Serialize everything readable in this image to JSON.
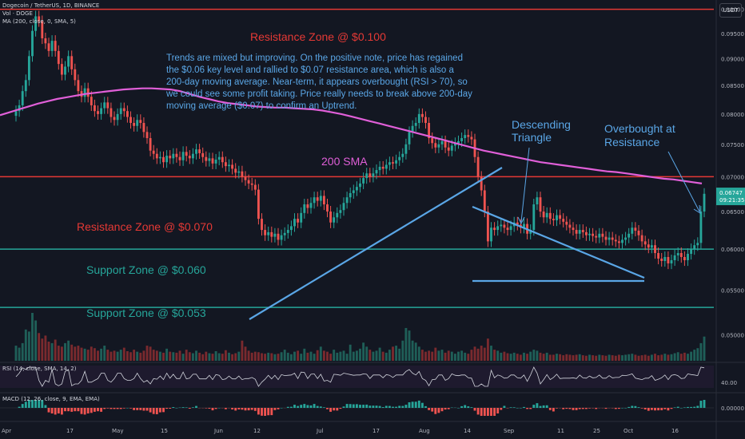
{
  "header": {
    "symbol_line": "Dogecoin / TetherUS, 1D, BINANCE",
    "volume_line": "Vol · DOGE",
    "ma_line": "MA (200, close, 0, SMA, 5)",
    "currency_button": "USDT"
  },
  "rsi_label": "RSI (14, close, SMA, 14, 2)",
  "macd_label": "MACD (12, 26, close, 9, EMA, EMA)",
  "annotations": {
    "resistance_100": "Resistance Zone @ $0.100",
    "resistance_070": "Resistance Zone @ $0.070",
    "support_060": "Support Zone @ $0.060",
    "support_053": "Support Zone @ $0.053",
    "sma_label": "200 SMA",
    "descending_line1": "Descending",
    "descending_line2": "Triangle",
    "overbought_line1": "Overbought at",
    "overbought_line2": "Resistance",
    "commentary": [
      "Trends are mixed but improving. On the positive note, price has regained",
      "the $0.06 key level and rallied to $0.07 resistance area, which is also a",
      "200-day moving average. Near-term, it appears overbought (RSI > 70), so",
      "we could see some profit taking. Price really needs to break above 200-day",
      "moving average ($0.07) to confirm an Uptrend."
    ]
  },
  "last_price": {
    "value": "0.06747",
    "countdown": "09:21:35"
  },
  "colors": {
    "background": "#131722",
    "up": "#26a69a",
    "down": "#ef5350",
    "sma": "#e05fd8",
    "resistance": "#e53935",
    "support": "#26a69a",
    "trendline": "#5aa6e6",
    "annotation_text": "#5aa6e6",
    "axis_text": "#b2b5be"
  },
  "chart_data": {
    "type": "candlestick",
    "y_axis": {
      "ticks": [
        "0.10000",
        "0.09500",
        "0.09000",
        "0.08500",
        "0.08000",
        "0.07500",
        "0.07000",
        "0.06500",
        "0.06000",
        "0.05500",
        "0.05000"
      ],
      "ylim": [
        0.0473,
        0.1013
      ],
      "scale": "log"
    },
    "x_axis": {
      "ticks": [
        "Apr",
        "17",
        "May",
        "15",
        "Jun",
        "12",
        "Jul",
        "17",
        "Aug",
        "14",
        "Sep",
        "11",
        "25",
        "Oct",
        "16"
      ]
    },
    "levels": [
      {
        "name": "Resistance Zone @ $0.100",
        "value": 0.1
      },
      {
        "name": "Resistance Zone @ $0.070",
        "value": 0.07
      },
      {
        "name": "Support Zone @ $0.060",
        "value": 0.06
      },
      {
        "name": "Support Zone @ $0.053",
        "value": 0.053
      }
    ],
    "series": {
      "close": [
        0.0805,
        0.0815,
        0.084,
        0.086,
        0.0905,
        0.0955,
        0.0985,
        0.0975,
        0.094,
        0.093,
        0.0915,
        0.0935,
        0.0915,
        0.089,
        0.087,
        0.0885,
        0.0905,
        0.088,
        0.086,
        0.084,
        0.083,
        0.0845,
        0.083,
        0.0815,
        0.0805,
        0.08,
        0.081,
        0.082,
        0.081,
        0.0795,
        0.079,
        0.08,
        0.081,
        0.0805,
        0.0795,
        0.0785,
        0.078,
        0.079,
        0.0785,
        0.077,
        0.076,
        0.074,
        0.0735,
        0.0728,
        0.073,
        0.0722,
        0.0732,
        0.0728,
        0.0735,
        0.073,
        0.0725,
        0.0738,
        0.0732,
        0.0728,
        0.0735,
        0.0742,
        0.0736,
        0.073,
        0.0724,
        0.0728,
        0.072,
        0.0726,
        0.073,
        0.0722,
        0.0716,
        0.0718,
        0.0712,
        0.0706,
        0.0708,
        0.07,
        0.0695,
        0.069,
        0.0688,
        0.0681,
        0.064,
        0.0625,
        0.0618,
        0.0622,
        0.0616,
        0.062,
        0.0612,
        0.0618,
        0.0621,
        0.0625,
        0.063,
        0.064,
        0.0635,
        0.0648,
        0.066,
        0.0655,
        0.0662,
        0.067,
        0.0665,
        0.0672,
        0.066,
        0.065,
        0.0635,
        0.0642,
        0.0648,
        0.0652,
        0.0662,
        0.067,
        0.0676,
        0.068,
        0.0685,
        0.069,
        0.0698,
        0.0705,
        0.07,
        0.0705,
        0.071,
        0.0715,
        0.0712,
        0.0718,
        0.0722,
        0.072,
        0.0725,
        0.073,
        0.0735,
        0.075,
        0.077,
        0.078,
        0.0785,
        0.08,
        0.0795,
        0.0785,
        0.076,
        0.0752,
        0.0745,
        0.075,
        0.0755,
        0.0745,
        0.074,
        0.0748,
        0.0752,
        0.0755,
        0.076,
        0.0765,
        0.0762,
        0.0758,
        0.073,
        0.07,
        0.068,
        0.065,
        0.061,
        0.0628,
        0.0625,
        0.063,
        0.0632,
        0.0628,
        0.0625,
        0.063,
        0.0635,
        0.0632,
        0.0628,
        0.0633,
        0.062,
        0.0625,
        0.066,
        0.067,
        0.065,
        0.0642,
        0.0648,
        0.064,
        0.0638,
        0.0645,
        0.064,
        0.0636,
        0.0632,
        0.0628,
        0.0625,
        0.062,
        0.0625,
        0.0622,
        0.0618,
        0.062,
        0.0617,
        0.0615,
        0.062,
        0.0616,
        0.0612,
        0.0615,
        0.0612,
        0.061,
        0.0608,
        0.0612,
        0.0615,
        0.062,
        0.0628,
        0.0624,
        0.0618,
        0.061,
        0.0606,
        0.0602,
        0.0605,
        0.0595,
        0.0588,
        0.0585,
        0.059,
        0.0582,
        0.0586,
        0.0592,
        0.0595,
        0.059,
        0.0586,
        0.0594,
        0.06,
        0.0605,
        0.0608,
        0.065,
        0.0675
      ],
      "sma200": [
        0.0798,
        0.0803,
        0.0808,
        0.0813,
        0.0818,
        0.0822,
        0.0826,
        0.0829,
        0.0832,
        0.0835,
        0.0837,
        0.0839,
        0.0841,
        0.0843,
        0.0844,
        0.0845,
        0.0845,
        0.0844,
        0.0843,
        0.084,
        0.0835,
        0.083,
        0.0826,
        0.0822,
        0.0819,
        0.0817,
        0.0815,
        0.0813,
        0.0812,
        0.0811,
        0.0811,
        0.081,
        0.0809,
        0.0808,
        0.0806,
        0.0803,
        0.08,
        0.0796,
        0.0792,
        0.0788,
        0.0784,
        0.078,
        0.0776,
        0.0772,
        0.0768,
        0.0764,
        0.076,
        0.0756,
        0.0752,
        0.0748,
        0.0744,
        0.074,
        0.0737,
        0.0734,
        0.0731,
        0.0728,
        0.0725,
        0.0722,
        0.072,
        0.0718,
        0.0716,
        0.0714,
        0.0712,
        0.071,
        0.0708,
        0.0707,
        0.0705,
        0.0703,
        0.0701,
        0.0699,
        0.0697,
        0.0696,
        0.0694,
        0.0692,
        0.069
      ],
      "volume": [
        30,
        26,
        35,
        62,
        58,
        95,
        80,
        55,
        44,
        50,
        38,
        35,
        42,
        30,
        28,
        35,
        40,
        32,
        28,
        30,
        26,
        24,
        22,
        28,
        25,
        20,
        24,
        30,
        22,
        18,
        20,
        18,
        22,
        26,
        19,
        17,
        22,
        18,
        16,
        20,
        30,
        28,
        22,
        20,
        18,
        16,
        24,
        18,
        17,
        16,
        20,
        14,
        22,
        17,
        15,
        20,
        16,
        13,
        18,
        15,
        14,
        19,
        15,
        14,
        21,
        16,
        13,
        15,
        18,
        40,
        28,
        20,
        16,
        18,
        17,
        15,
        14,
        16,
        15,
        13,
        14,
        17,
        22,
        16,
        13,
        18,
        20,
        14,
        24,
        16,
        18,
        14,
        21,
        28,
        20,
        18,
        14,
        22,
        16,
        18,
        20,
        14,
        32,
        18,
        20,
        24,
        36,
        28,
        22,
        18,
        20,
        26,
        18,
        16,
        22,
        28,
        30,
        24,
        40,
        65,
        60,
        40,
        36,
        28,
        22,
        18,
        20,
        18,
        26,
        20,
        22,
        16,
        20,
        18,
        14,
        18,
        20,
        16,
        14,
        22,
        28,
        24,
        30,
        26,
        44,
        30,
        22,
        20,
        16,
        18,
        15,
        14,
        16,
        14,
        12,
        16,
        14,
        18,
        22,
        20,
        16,
        14,
        16,
        12,
        12,
        14,
        13,
        11,
        13,
        12,
        11,
        12,
        13,
        11,
        10,
        12,
        11,
        10,
        12,
        11,
        10,
        12,
        11,
        10,
        12,
        11,
        12,
        13,
        14,
        12,
        10,
        11,
        12,
        10,
        12,
        14,
        11,
        12,
        14,
        12,
        13,
        15,
        17,
        14,
        16,
        14,
        18,
        22,
        25,
        35,
        48
      ]
    }
  }
}
